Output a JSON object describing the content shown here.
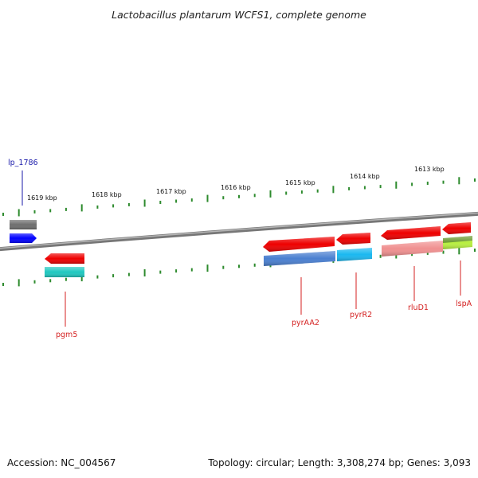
{
  "title": "Lactobacillus plantarum WCFS1, complete genome",
  "footer": {
    "accession_label": "Accession:",
    "accession": "NC_004567",
    "summary": "Topology: circular; Length: 3,308,274 bp; Genes: 3,093"
  },
  "colors": {
    "backbone": "#8a8a8a",
    "ticks": "#2e8b2e",
    "forward_label": "#1a1aaa",
    "reverse_label": "#d42020"
  },
  "scale_unit": "kbp",
  "ticks": [
    {
      "label": "1619 kbp"
    },
    {
      "label": "1618 kbp"
    },
    {
      "label": "1617 kbp"
    },
    {
      "label": "1616 kbp"
    },
    {
      "label": "1615 kbp"
    },
    {
      "label": "1614 kbp"
    },
    {
      "label": "1613 kbp"
    }
  ],
  "genes": [
    {
      "name": "lp_1786",
      "strand": "forward",
      "color": "#0000ff",
      "cog_color": "#6e6e6e"
    },
    {
      "name": "pgm5",
      "strand": "reverse",
      "color": "#ee0000",
      "cog_color": "#1fc8c0"
    },
    {
      "name": "pyrAA2",
      "strand": "reverse",
      "color": "#ee0000",
      "cog_color": "#4a7fd0"
    },
    {
      "name": "pyrR2",
      "strand": "reverse",
      "color": "#ee0000",
      "cog_color": "#1ab8f0"
    },
    {
      "name": "rluD1",
      "strand": "reverse",
      "color": "#ee0000",
      "cog_color": "#f09090"
    },
    {
      "name": "lspA",
      "strand": "reverse",
      "color": "#ee0000",
      "cog_color": "#8ccc30",
      "cog_color_2": "#b8f040"
    }
  ]
}
